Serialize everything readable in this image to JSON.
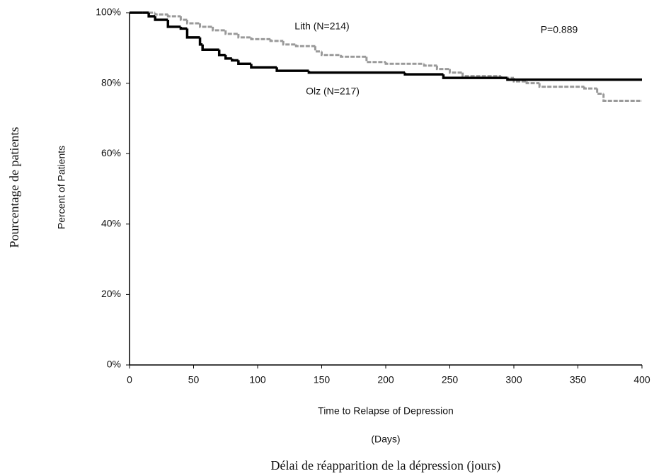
{
  "chart_data": {
    "type": "step",
    "y_label_outer": "Pourcentage de patients",
    "y_label": "Percent of Patients",
    "x_label": "Time to Relapse of Depression",
    "x_unit": "(Days)",
    "x_label_outer": "Délai de réapparition de la dépression (jours)",
    "annotation": "P=0.889",
    "xlim": [
      0,
      400
    ],
    "xticks": [
      0,
      50,
      100,
      150,
      200,
      250,
      300,
      350,
      400
    ],
    "ylim": [
      0,
      100
    ],
    "yticks": [
      {
        "value": 0,
        "label": "0%"
      },
      {
        "value": 20,
        "label": "20%"
      },
      {
        "value": 40,
        "label": "40%"
      },
      {
        "value": 60,
        "label": "60%"
      },
      {
        "value": 80,
        "label": "80%"
      },
      {
        "value": 100,
        "label": "100%"
      }
    ],
    "series": [
      {
        "name": "Lith (N=214)",
        "color": "#9a9a9a",
        "line_style": "dashed",
        "x": [
          0,
          15,
          20,
          30,
          40,
          45,
          55,
          65,
          75,
          85,
          95,
          110,
          120,
          130,
          145,
          150,
          165,
          185,
          200,
          230,
          240,
          250,
          260,
          290,
          300,
          310,
          320,
          355,
          365,
          370,
          400
        ],
        "values": [
          100,
          100,
          99.5,
          99,
          98,
          97,
          96,
          95,
          94,
          93,
          92.5,
          92,
          91,
          90.5,
          89,
          88,
          87.5,
          86,
          85.5,
          85,
          84,
          83,
          82,
          81.5,
          80.5,
          80,
          79,
          78.5,
          77,
          75,
          75
        ]
      },
      {
        "name": "Olz (N=217)",
        "color": "#000000",
        "line_style": "solid",
        "x": [
          0,
          10,
          15,
          20,
          30,
          40,
          45,
          55,
          57,
          70,
          75,
          80,
          85,
          95,
          115,
          140,
          215,
          245,
          295,
          400
        ],
        "values": [
          100,
          100,
          99,
          98,
          96,
          95.5,
          93,
          91,
          89.5,
          88,
          87,
          86.5,
          85.5,
          84.5,
          83.5,
          83,
          82.5,
          81.5,
          81,
          81
        ]
      }
    ]
  }
}
